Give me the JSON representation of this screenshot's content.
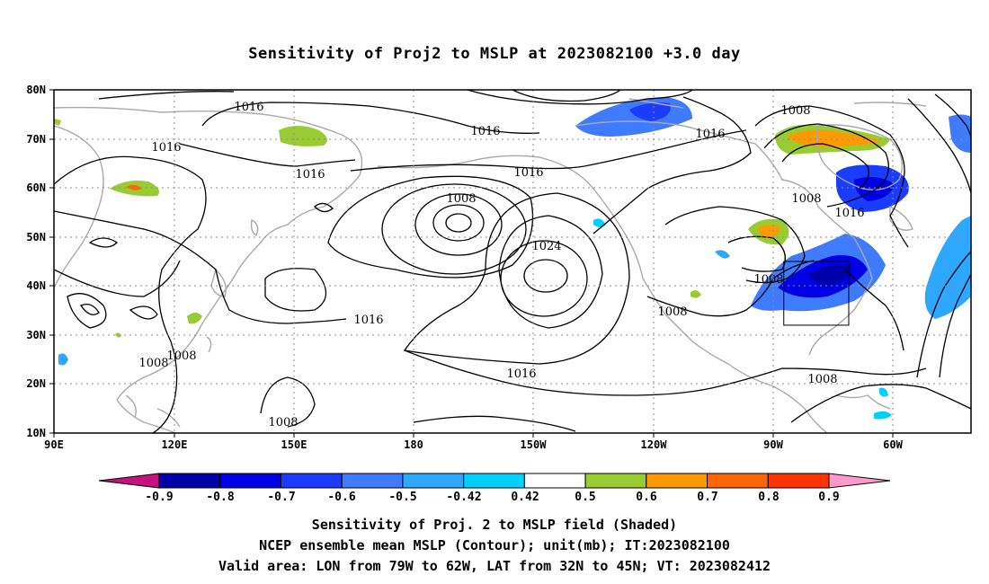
{
  "title": "Sensitivity of Proj2 to MSLP at 2023082100 +3.0 day",
  "lon_ticks": [
    "90E",
    "120E",
    "150E",
    "180",
    "150W",
    "120W",
    "90W",
    "60W"
  ],
  "lat_ticks": [
    "80N",
    "70N",
    "60N",
    "50N",
    "40N",
    "30N",
    "20N",
    "10N"
  ],
  "contour_labels": [
    "1016",
    "1016",
    "1016",
    "1016",
    "1016",
    "1016",
    "1016",
    "1008",
    "1024",
    "1016",
    "1008",
    "1008",
    "1008",
    "1008",
    "1008",
    "1008",
    "1008",
    "1008"
  ],
  "colorbar": {
    "labels": [
      "-0.9",
      "-0.8",
      "-0.7",
      "-0.6",
      "-0.5",
      "-0.42",
      "0.42",
      "0.5",
      "0.6",
      "0.7",
      "0.8",
      "0.9"
    ],
    "colors": [
      "#0000a8",
      "#0000e6",
      "#1a3cff",
      "#3f7bff",
      "#2ea8ff",
      "#00cfff",
      "#ffffff",
      "#99cc33",
      "#ff9900",
      "#ff6600",
      "#ff3300",
      "#ff0000"
    ],
    "low_end_color": "#c8107f",
    "high_end_color": "#ff99cc"
  },
  "valid_area": {
    "lon": [
      -79,
      -62
    ],
    "lat": [
      32,
      45
    ]
  },
  "footer": {
    "line1": "Sensitivity of Proj. 2 to MSLP field (Shaded)",
    "line2": "NCEP ensemble mean MSLP (Contour); unit(mb); IT:2023082100",
    "line3": "Valid area: LON from 79W to 62W, LAT from 32N to 45N; VT: 2023082412"
  }
}
